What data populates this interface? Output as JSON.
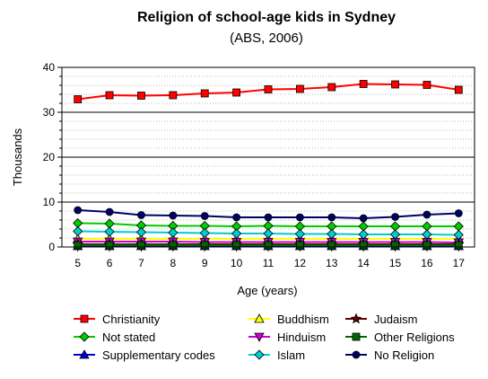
{
  "chart_data": {
    "type": "line",
    "title": "Religion of school-age kids in Sydney",
    "subtitle": "(ABS, 2006)",
    "xlabel": "Age (years)",
    "ylabel": "Thousands",
    "x": [
      5,
      6,
      7,
      8,
      9,
      10,
      11,
      12,
      13,
      14,
      15,
      16,
      17
    ],
    "ylim": [
      0,
      40
    ],
    "yticks": [
      0,
      10,
      20,
      30,
      40
    ],
    "grid": true,
    "legend_position": "bottom",
    "series": [
      {
        "name": "Christianity",
        "color": "#ff0000",
        "marker": "square",
        "values": [
          32.9,
          33.8,
          33.7,
          33.8,
          34.2,
          34.4,
          35.1,
          35.2,
          35.6,
          36.3,
          36.2,
          36.1,
          35.0
        ]
      },
      {
        "name": "Not stated",
        "color": "#00cc00",
        "marker": "diamond",
        "values": [
          5.3,
          5.2,
          4.8,
          4.7,
          4.7,
          4.6,
          4.7,
          4.6,
          4.6,
          4.6,
          4.6,
          4.6,
          4.6
        ]
      },
      {
        "name": "Supplementary codes",
        "color": "#0000cc",
        "marker": "triangle-up",
        "values": [
          0.2,
          0.2,
          0.2,
          0.2,
          0.2,
          0.2,
          0.2,
          0.2,
          0.2,
          0.2,
          0.2,
          0.2,
          0.2
        ]
      },
      {
        "name": "Buddhism",
        "color": "#ffff00",
        "marker": "triangle-up",
        "values": [
          1.8,
          1.8,
          1.8,
          1.8,
          1.8,
          1.8,
          1.8,
          1.8,
          1.8,
          1.8,
          1.8,
          1.8,
          1.8
        ]
      },
      {
        "name": "Hinduism",
        "color": "#cc00cc",
        "marker": "triangle-down",
        "values": [
          1.2,
          1.2,
          1.2,
          1.2,
          1.1,
          1.1,
          1.1,
          1.1,
          1.1,
          1.1,
          1.1,
          1.1,
          1.0
        ]
      },
      {
        "name": "Islam",
        "color": "#00cccc",
        "marker": "diamond",
        "values": [
          3.5,
          3.4,
          3.3,
          3.2,
          3.1,
          3.0,
          3.0,
          2.9,
          2.9,
          2.8,
          2.8,
          2.8,
          2.7
        ]
      },
      {
        "name": "Judaism",
        "color": "#660000",
        "marker": "star",
        "values": [
          0.6,
          0.6,
          0.6,
          0.6,
          0.6,
          0.6,
          0.6,
          0.6,
          0.6,
          0.6,
          0.6,
          0.6,
          0.6
        ]
      },
      {
        "name": "Other Religions",
        "color": "#006600",
        "marker": "square",
        "values": [
          0.4,
          0.4,
          0.4,
          0.4,
          0.4,
          0.4,
          0.4,
          0.4,
          0.4,
          0.4,
          0.4,
          0.4,
          0.4
        ]
      },
      {
        "name": "No Religion",
        "color": "#000066",
        "marker": "circle",
        "values": [
          8.2,
          7.8,
          7.1,
          7.0,
          6.9,
          6.6,
          6.6,
          6.6,
          6.6,
          6.4,
          6.7,
          7.2,
          7.5
        ]
      }
    ]
  }
}
